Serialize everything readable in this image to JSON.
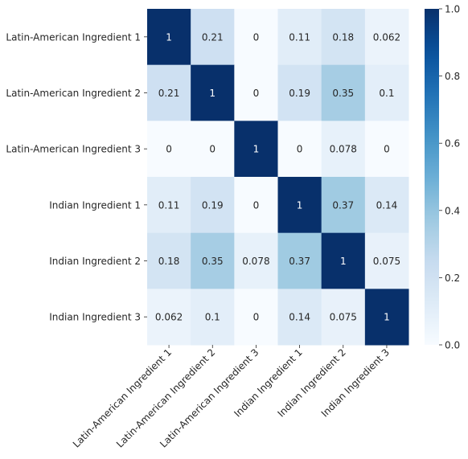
{
  "chart_data": {
    "type": "heatmap",
    "title": "",
    "xlabel": "",
    "ylabel": "",
    "rows": [
      "Latin-American Ingredient 1",
      "Latin-American Ingredient 2",
      "Latin-American Ingredient 3",
      "Indian Ingredient 1",
      "Indian Ingredient 2",
      "Indian Ingredient 3"
    ],
    "columns": [
      "Latin-American Ingredient 1",
      "Latin-American Ingredient 2",
      "Latin-American Ingredient 3",
      "Indian Ingredient 1",
      "Indian Ingredient 2",
      "Indian Ingredient 3"
    ],
    "values": [
      [
        1,
        0.21,
        0,
        0.11,
        0.18,
        0.062
      ],
      [
        0.21,
        1,
        0,
        0.19,
        0.35,
        0.1
      ],
      [
        0,
        0,
        1,
        0,
        0.078,
        0
      ],
      [
        0.11,
        0.19,
        0,
        1,
        0.37,
        0.14
      ],
      [
        0.18,
        0.35,
        0.078,
        0.37,
        1,
        0.075
      ],
      [
        0.062,
        0.1,
        0,
        0.14,
        0.075,
        1
      ]
    ],
    "cell_labels": [
      [
        "1",
        "0.21",
        "0",
        "0.11",
        "0.18",
        "0.062"
      ],
      [
        "0.21",
        "1",
        "0",
        "0.19",
        "0.35",
        "0.1"
      ],
      [
        "0",
        "0",
        "1",
        "0",
        "0.078",
        "0"
      ],
      [
        "0.11",
        "0.19",
        "0",
        "1",
        "0.37",
        "0.14"
      ],
      [
        "0.18",
        "0.35",
        "0.078",
        "0.37",
        "1",
        "0.075"
      ],
      [
        "0.062",
        "0.1",
        "0",
        "0.14",
        "0.075",
        "1"
      ]
    ],
    "colormap": "Blues",
    "vmin": 0,
    "vmax": 1,
    "colorbar_ticks": [
      {
        "value": 0,
        "label": "0.0"
      },
      {
        "value": 0.2,
        "label": "0.2"
      },
      {
        "value": 0.4,
        "label": "0.4"
      },
      {
        "value": 0.6,
        "label": "0.6"
      },
      {
        "value": 0.8,
        "label": "0.8"
      },
      {
        "value": 1.0,
        "label": "1.0"
      }
    ],
    "colorbar_location": "right",
    "grid": false
  }
}
